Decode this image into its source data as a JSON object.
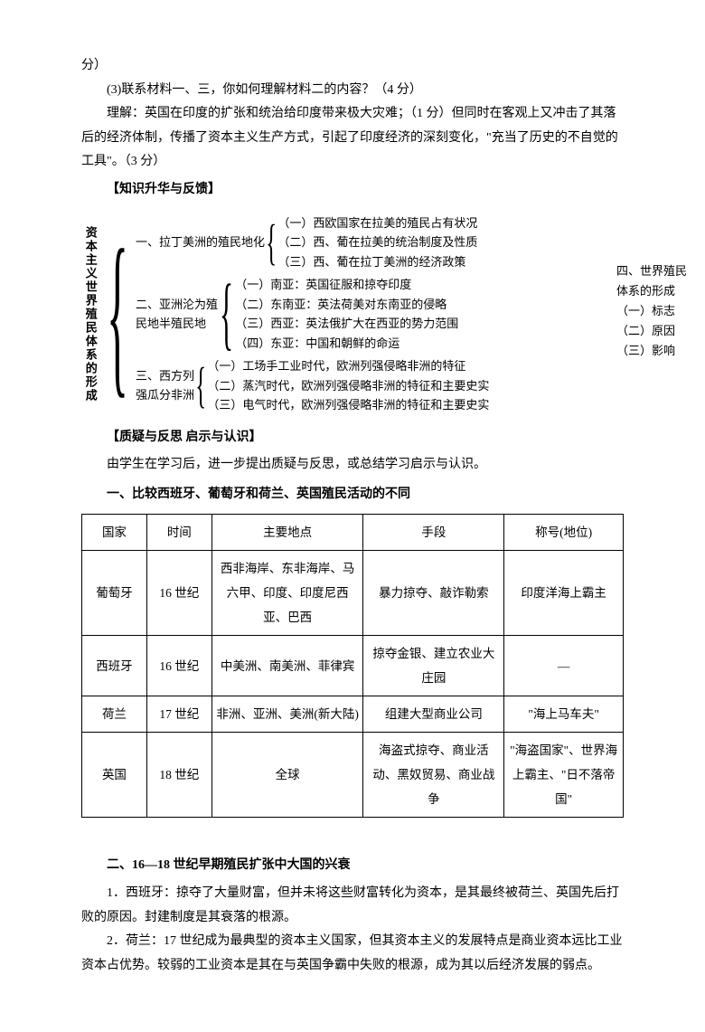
{
  "header": {
    "line1": "分）",
    "line2": "(3)联系材料一、三，你如何理解材料二的内容？（4 分）",
    "line3": "理解：英国在印度的扩张和统治给印度带来极大灾难；（1 分）但同时在客观上又冲击了其落后的经济体制，传播了资本主义生产方式，引起了印度经济的深刻变化，\"充当了历史的不自觉的工具\"。（3 分）"
  },
  "section1_title": "【知识升华与反馈】",
  "diagram": {
    "main_label": "资本主义世界殖民体系的形成",
    "g1": {
      "title": "一、拉丁美洲的殖民地化",
      "items": [
        "（一）西欧国家在拉美的殖民占有状况",
        "（二）西、葡在拉美的统治制度及性质",
        "（三）西、葡在拉丁美洲的经济政策"
      ]
    },
    "g2": {
      "title1": "二、亚洲沦为殖",
      "title2": "民地半殖民地",
      "items": [
        "（一）南亚：英国征服和掠夺印度",
        "（二）东南亚：英法荷美对东南亚的侵略",
        "（三）西亚：英法俄扩大在西亚的势力范围",
        "（四）东亚：中国和朝鲜的命运"
      ]
    },
    "g3": {
      "title1": "三、西方列",
      "title2": "强瓜分非洲",
      "items": [
        "（一）工场手工业时代，欧洲列强侵略非洲的特征",
        "（二）蒸汽时代，欧洲列强侵略非洲的特征和主要史实",
        "（三）电气时代，欧洲列强侵略非洲的特征和主要史实"
      ]
    },
    "right": {
      "title1": "四、世界殖民",
      "title2": "体系的形成",
      "items": [
        "（一）标志",
        "（二）原因",
        "（三）影响"
      ]
    }
  },
  "section2_title": "【质疑与反思  启示与认识】",
  "section2_text": "由学生在学习后，进一步提出质疑与反思，或总结学习启示与认识。",
  "table_title": "一、比较西班牙、葡萄牙和荷兰、英国殖民活动的不同",
  "table": {
    "headers": [
      "国家",
      "时间",
      "主要地点",
      "手段",
      "称号(地位)"
    ],
    "rows": [
      [
        "葡萄牙",
        "16 世纪",
        "西非海岸、东非海岸、马六甲、印度、印度尼西亚、巴西",
        "暴力掠夺、敲诈勒索",
        "印度洋海上霸主"
      ],
      [
        "西班牙",
        "16 世纪",
        "中美洲、南美洲、菲律宾",
        "掠夺金银、建立农业大庄园",
        "—"
      ],
      [
        "荷兰",
        "17 世纪",
        "非洲、亚洲、美洲(新大陆)",
        "组建大型商业公司",
        "\"海上马车夫\""
      ],
      [
        "英国",
        "18 世纪",
        "全球",
        "海盗式掠夺、商业活动、黑奴贸易、商业战争",
        "\"海盗国家\"、世界海上霸主、\"日不落帝国\""
      ]
    ]
  },
  "section3_title": "二、16—18 世纪早期殖民扩张中大国的兴衰",
  "p1": "1．西班牙：掠夺了大量财富，但并未将这些财富转化为资本，是其最终被荷兰、英国先后打败的原因。封建制度是其衰落的根源。",
  "p2": "2．荷兰：17 世纪成为最典型的资本主义国家，但其资本主义的发展特点是商业资本远比工业资本占优势。较弱的工业资本是其在与英国争霸中失败的根源，成为其以后经济发展的弱点。"
}
